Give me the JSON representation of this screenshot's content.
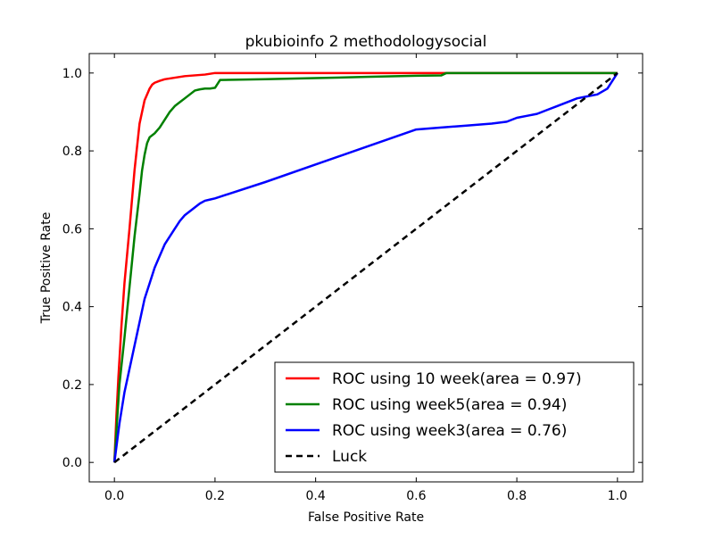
{
  "chart_data": {
    "type": "line",
    "title": "pkubioinfo 2 methodologysocial",
    "xlabel": "False Positive Rate",
    "ylabel": "True Positive Rate",
    "xlim": [
      -0.05,
      1.05
    ],
    "ylim": [
      -0.05,
      1.05
    ],
    "xticks": [
      0.0,
      0.2,
      0.4,
      0.6,
      0.8,
      1.0
    ],
    "yticks": [
      0.0,
      0.2,
      0.4,
      0.6,
      0.8,
      1.0
    ],
    "xtick_labels": [
      "0.0",
      "0.2",
      "0.4",
      "0.6",
      "0.8",
      "1.0"
    ],
    "ytick_labels": [
      "0.0",
      "0.2",
      "0.4",
      "0.6",
      "0.8",
      "1.0"
    ],
    "grid": false,
    "legend_position": "lower-right",
    "series": [
      {
        "name": "ROC using 10 week(area = 0.97)",
        "color": "#ff0000",
        "dash": "solid",
        "x": [
          0.0,
          0.004,
          0.008,
          0.014,
          0.02,
          0.03,
          0.04,
          0.05,
          0.06,
          0.065,
          0.07,
          0.075,
          0.08,
          0.09,
          0.1,
          0.12,
          0.14,
          0.16,
          0.18,
          0.2,
          0.25,
          0.3,
          0.4,
          0.5,
          0.6,
          0.66,
          0.7,
          0.8,
          1.0
        ],
        "y": [
          0.0,
          0.12,
          0.22,
          0.35,
          0.46,
          0.6,
          0.75,
          0.87,
          0.93,
          0.945,
          0.96,
          0.97,
          0.975,
          0.98,
          0.984,
          0.988,
          0.992,
          0.994,
          0.996,
          1.0,
          1.0,
          1.0,
          1.0,
          1.0,
          1.0,
          1.0,
          1.0,
          1.0,
          1.0
        ]
      },
      {
        "name": "ROC using week5(area = 0.94)",
        "color": "#008000",
        "dash": "solid",
        "x": [
          0.0,
          0.005,
          0.01,
          0.02,
          0.03,
          0.04,
          0.05,
          0.055,
          0.06,
          0.065,
          0.07,
          0.075,
          0.08,
          0.09,
          0.1,
          0.11,
          0.12,
          0.13,
          0.14,
          0.15,
          0.16,
          0.17,
          0.18,
          0.19,
          0.2,
          0.21,
          0.3,
          0.4,
          0.5,
          0.6,
          0.65,
          0.66,
          0.8,
          1.0
        ],
        "y": [
          0.0,
          0.1,
          0.2,
          0.32,
          0.45,
          0.58,
          0.69,
          0.75,
          0.79,
          0.82,
          0.835,
          0.84,
          0.845,
          0.86,
          0.88,
          0.9,
          0.915,
          0.925,
          0.935,
          0.945,
          0.955,
          0.958,
          0.96,
          0.96,
          0.962,
          0.982,
          0.984,
          0.987,
          0.99,
          0.993,
          0.994,
          1.0,
          1.0,
          1.0
        ]
      },
      {
        "name": "ROC using week3(area = 0.76)",
        "color": "#0000ff",
        "dash": "solid",
        "x": [
          0.0,
          0.003,
          0.006,
          0.01,
          0.015,
          0.02,
          0.025,
          0.03,
          0.035,
          0.04,
          0.045,
          0.05,
          0.055,
          0.06,
          0.07,
          0.08,
          0.09,
          0.1,
          0.11,
          0.12,
          0.13,
          0.14,
          0.15,
          0.16,
          0.17,
          0.18,
          0.19,
          0.2,
          0.3,
          0.4,
          0.5,
          0.6,
          0.65,
          0.7,
          0.75,
          0.78,
          0.8,
          0.82,
          0.84,
          0.86,
          0.88,
          0.9,
          0.92,
          0.94,
          0.96,
          0.98,
          0.99,
          1.0
        ],
        "y": [
          0.0,
          0.03,
          0.06,
          0.1,
          0.14,
          0.18,
          0.21,
          0.24,
          0.27,
          0.3,
          0.33,
          0.36,
          0.39,
          0.42,
          0.46,
          0.5,
          0.53,
          0.56,
          0.58,
          0.6,
          0.62,
          0.635,
          0.645,
          0.655,
          0.665,
          0.672,
          0.675,
          0.678,
          0.72,
          0.765,
          0.81,
          0.855,
          0.86,
          0.865,
          0.87,
          0.875,
          0.885,
          0.89,
          0.895,
          0.905,
          0.915,
          0.925,
          0.935,
          0.94,
          0.945,
          0.96,
          0.98,
          1.0
        ]
      },
      {
        "name": "Luck",
        "color": "#000000",
        "dash": "dashed",
        "x": [
          0.0,
          1.0
        ],
        "y": [
          0.0,
          1.0
        ]
      }
    ]
  }
}
